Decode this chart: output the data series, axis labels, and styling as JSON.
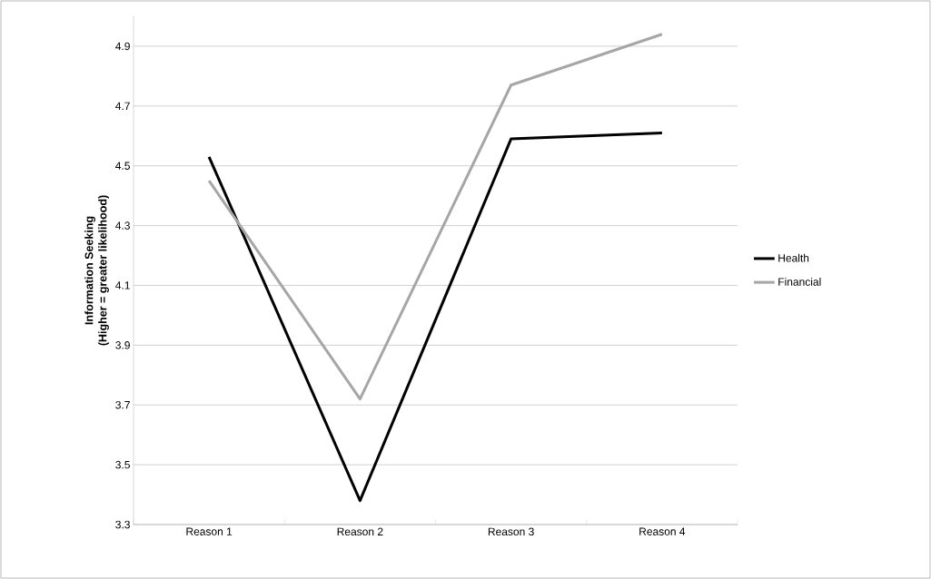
{
  "chart_data": {
    "type": "line",
    "ylabel": "Information Seeking\n(Higher = greater likelihood)",
    "categories": [
      "Reason 1",
      "Reason 2",
      "Reason 3",
      "Reason 4"
    ],
    "series": [
      {
        "name": "Health",
        "color": "#000000",
        "values": [
          4.53,
          3.38,
          4.59,
          4.61
        ]
      },
      {
        "name": "Financial",
        "color": "#a6a6a6",
        "values": [
          4.45,
          3.72,
          4.77,
          4.94
        ]
      }
    ],
    "ylim": [
      3.3,
      5.0
    ],
    "yticks": [
      3.3,
      3.5,
      3.7,
      3.9,
      4.1,
      4.3,
      4.5,
      4.7,
      4.9
    ],
    "grid": "y",
    "legend": "right",
    "marker": "none",
    "line_style": "solid"
  }
}
